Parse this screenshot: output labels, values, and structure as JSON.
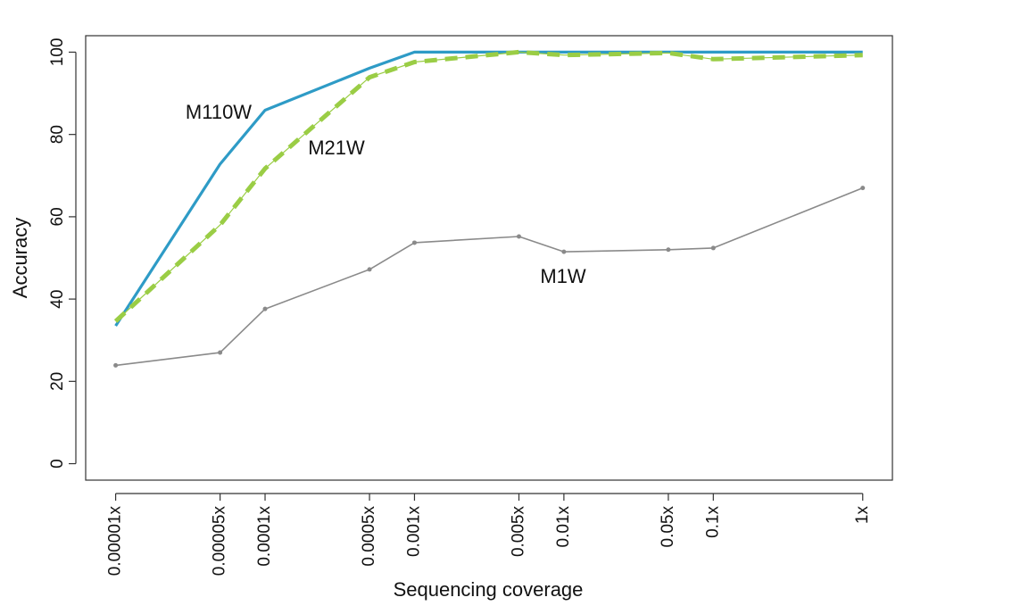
{
  "chart_data": {
    "type": "line",
    "x_label": "Sequencing coverage",
    "y_label": "Accuracy",
    "x": [
      1e-05,
      5e-05,
      0.0001,
      0.0005,
      0.001,
      0.005,
      0.01,
      0.05,
      0.1,
      1
    ],
    "x_log": true,
    "xlim": [
      6.3e-06,
      1.58
    ],
    "xticks": [
      {
        "value": 1e-05,
        "label": "0.00001x"
      },
      {
        "value": 5e-05,
        "label": "0.00005x"
      },
      {
        "value": 0.0001,
        "label": "0.0001x"
      },
      {
        "value": 0.0005,
        "label": "0.0005x"
      },
      {
        "value": 0.001,
        "label": "0.001x"
      },
      {
        "value": 0.005,
        "label": "0.005x"
      },
      {
        "value": 0.01,
        "label": "0.01x"
      },
      {
        "value": 0.05,
        "label": "0.05x"
      },
      {
        "value": 0.1,
        "label": "0.1x"
      },
      {
        "value": 1,
        "label": "1x"
      }
    ],
    "ylim": [
      -4,
      104
    ],
    "yticks": [
      0,
      20,
      40,
      60,
      80,
      100
    ],
    "grid": false,
    "series": [
      {
        "name": "M110W",
        "color": "#2e9bc6",
        "style": "solid",
        "values": [
          33.5,
          72.8,
          85.9,
          96.1,
          100,
          100,
          100,
          100,
          100,
          100
        ]
      },
      {
        "name": "M21W",
        "color": "#9acd45",
        "style": "dashed",
        "values": [
          34.6,
          58,
          71.7,
          93.9,
          97.6,
          100,
          99.3,
          99.8,
          98.3,
          99.3
        ]
      },
      {
        "name": "M1W",
        "color": "#8a8a8a",
        "style": "dotted",
        "values": [
          23.9,
          27,
          37.6,
          47.2,
          53.7,
          55.2,
          51.5,
          52,
          52.4,
          67
        ]
      }
    ]
  }
}
